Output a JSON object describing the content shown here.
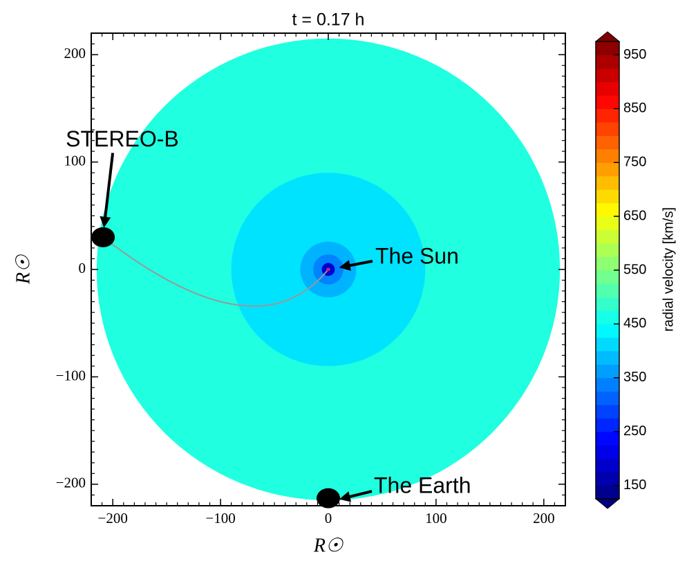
{
  "chart_data": {
    "type": "contour",
    "title": "t = 0.17 h",
    "x_label": "R☉",
    "y_label": "R☉",
    "xlim": [
      -220,
      220
    ],
    "ylim": [
      -220,
      220
    ],
    "xticks": [
      {
        "value": -200,
        "label": "−200"
      },
      {
        "value": -100,
        "label": "−100"
      },
      0,
      100,
      200
    ],
    "yticks": [
      {
        "value": -200,
        "label": "−200"
      },
      {
        "value": -100,
        "label": "−100"
      },
      0,
      100,
      200
    ],
    "levels": [
      {
        "radius": 215,
        "value": 470
      },
      {
        "radius": 90,
        "value": 420
      },
      {
        "radius": 26,
        "value": 380
      },
      {
        "radius": 14,
        "value": 340
      },
      {
        "radius": 6,
        "value": 190
      }
    ],
    "colorbar": {
      "label": "radial velocity [km/s]",
      "colormap": "jet",
      "lim": [
        125,
        975
      ],
      "step": 25,
      "ticks": [
        150,
        250,
        350,
        450,
        550,
        650,
        750,
        850,
        950
      ]
    },
    "objects": [
      {
        "label": "STEREO-B",
        "x": -209,
        "y": 30,
        "color": "#000000"
      },
      {
        "label": "The Sun",
        "x": 0,
        "y": 0,
        "color": "#c0208a"
      },
      {
        "label": "The Earth",
        "x": 0,
        "y": -213,
        "color": "#000000"
      }
    ]
  }
}
